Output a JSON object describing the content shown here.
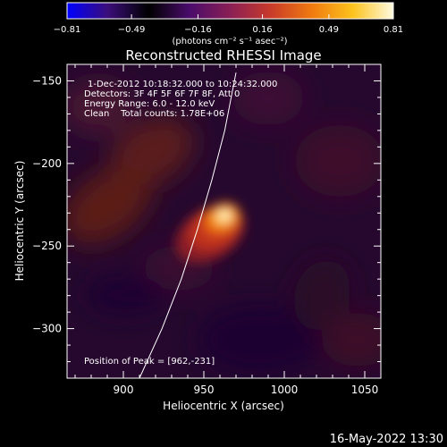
{
  "chart_data": {
    "type": "heatmap",
    "title": "Reconstructed RHESSI Image",
    "xlabel": "Heliocentric X (arcsec)",
    "ylabel": "Heliocentric Y (arcsec)",
    "xlim": [
      865,
      1060
    ],
    "ylim": [
      -330,
      -140
    ],
    "x_ticks": [
      900,
      950,
      1000,
      1050
    ],
    "x_tick_labels": [
      "900",
      "950",
      "1000",
      "1050"
    ],
    "y_ticks": [
      -150,
      -200,
      -250,
      -300
    ],
    "y_tick_labels": [
      "−150",
      "−200",
      "−250",
      "−300"
    ],
    "colorbar": {
      "min": -0.81,
      "max": 0.81,
      "ticks": [
        -0.81,
        -0.49,
        -0.16,
        0.16,
        0.49,
        0.81
      ],
      "tick_labels": [
        "−0.81",
        "−0.49",
        "−0.16",
        "0.16",
        "0.49",
        "0.81"
      ],
      "unit_label": "(photons cm⁻² s⁻¹ asec⁻²)",
      "colors": [
        "#0000ff",
        "#3b0e7a",
        "#000000",
        "#4a0c6b",
        "#8a1f55",
        "#c83b2a",
        "#f07a10",
        "#fcc21c",
        "#fffbe0"
      ]
    },
    "peak": {
      "x": 962,
      "y": -231,
      "value": 0.81
    },
    "annotations": [
      "1-Dec-2012 10:18:32.000 to 10:24:32.000",
      "Detectors: 3F 4F 5F 6F 7F 8F, Att 0",
      "Energy Range: 6.0 - 12.0 keV",
      "Clean    Total counts: 1.78E+06",
      "Position of Peak = [962,-231]"
    ],
    "limb_line": {
      "x": [
        910,
        924,
        936,
        946,
        955,
        963,
        970
      ],
      "y": [
        -330,
        -300,
        -270,
        -240,
        -210,
        -180,
        -145
      ]
    },
    "footer": "16-May-2022 13:30"
  }
}
